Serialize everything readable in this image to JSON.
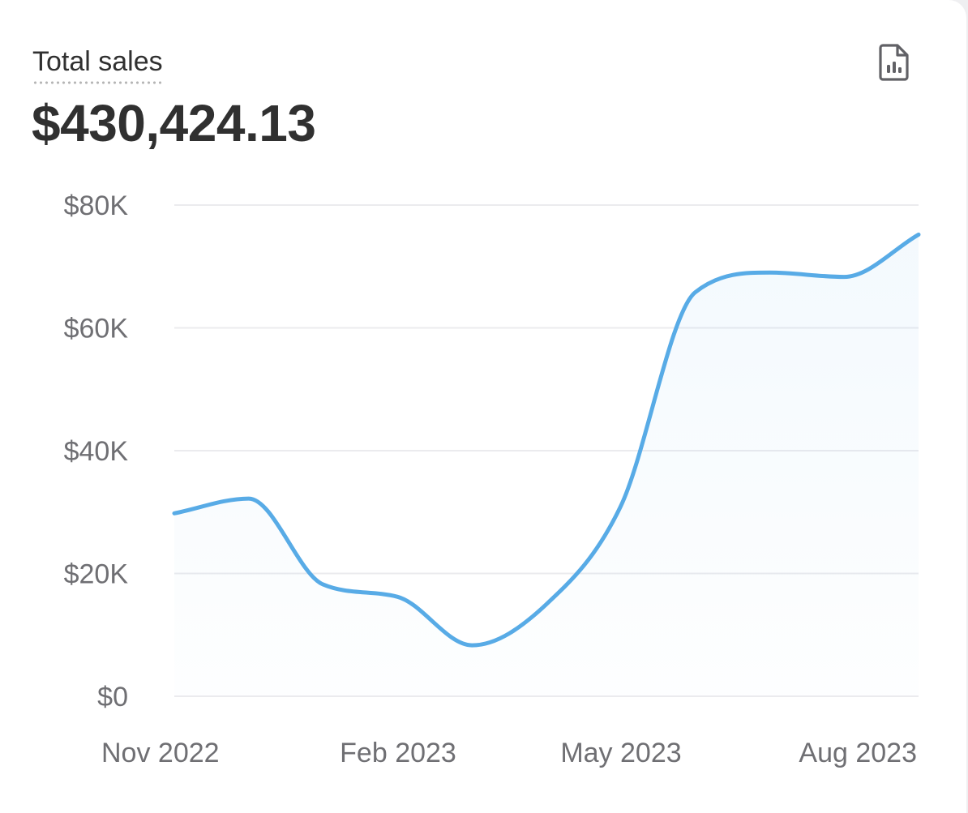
{
  "metric": {
    "label": "Total sales",
    "value": "$430,424.13"
  },
  "toolbar": {
    "export_icon": "file-chart-icon"
  },
  "colors": {
    "line": "#58abe6",
    "grid": "#ebebee",
    "axis_text": "#6f6f73",
    "title_text": "#303030"
  },
  "chart_data": {
    "type": "area",
    "title": "",
    "xlabel": "",
    "ylabel": "",
    "ylim": [
      0,
      80000
    ],
    "y_ticks": [
      {
        "value": 0,
        "label": "$0"
      },
      {
        "value": 20000,
        "label": "$20K"
      },
      {
        "value": 40000,
        "label": "$40K"
      },
      {
        "value": 60000,
        "label": "$60K"
      },
      {
        "value": 80000,
        "label": "$80K"
      }
    ],
    "x_ticks": [
      "Nov 2022",
      "Feb 2023",
      "May 2023",
      "Aug 2023"
    ],
    "grid": true,
    "legend": "none",
    "series": [
      {
        "values": [
          29800,
          32200,
          18200,
          16200,
          8300,
          15000,
          31000,
          65800,
          69000,
          68300,
          75200
        ]
      }
    ]
  }
}
